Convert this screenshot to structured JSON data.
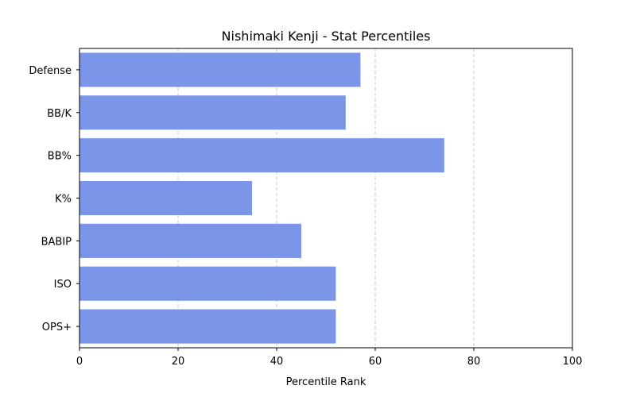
{
  "chart_data": {
    "type": "bar",
    "orientation": "horizontal",
    "title": "Nishimaki Kenji - Stat Percentiles",
    "xlabel": "Percentile Rank",
    "ylabel": "",
    "categories": [
      "Defense",
      "BB/K",
      "BB%",
      "K%",
      "BABIP",
      "ISO",
      "OPS+"
    ],
    "values": [
      57,
      54,
      74,
      35,
      45,
      52,
      52
    ],
    "xlim": [
      0,
      100
    ],
    "xticks": [
      0,
      20,
      40,
      60,
      80,
      100
    ],
    "xtick_labels": [
      "0",
      "20",
      "40",
      "60",
      "80",
      "100"
    ],
    "grid": "x-dashed",
    "colors": {
      "bar": "#7b96e8",
      "grid": "#c8c8c8",
      "axis": "#000000"
    }
  }
}
